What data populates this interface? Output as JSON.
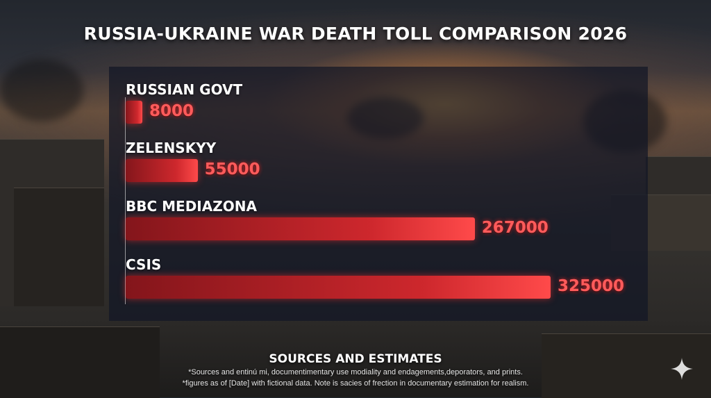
{
  "title": "RUSSIA-UKRAINE WAR DEATH TOLL COMPARISON 2026",
  "chart_data": {
    "type": "bar",
    "orientation": "horizontal",
    "categories": [
      "RUSSIAN GOVT",
      "ZELENSKYY",
      "BBC MEDIAZONA",
      "CSIS"
    ],
    "values": [
      8000,
      55000,
      267000,
      325000
    ],
    "value_labels": [
      "8000",
      "55000",
      "267000",
      "325000"
    ],
    "xlim": [
      0,
      325000
    ],
    "grid": false,
    "bar_color": "#e02a2e",
    "label_color": "#ff5b5b"
  },
  "footer": {
    "heading": "SOURCES AND ESTIMATES",
    "note_1": "*Sources and entinú mi, documentimentary use modiality and endagements,deporators, and prints.",
    "note_2": "*figures as of [Date] with fictional data. Note is sacies of frection in documentary estimation for realism."
  },
  "icons": {
    "corner": "sparkle-icon"
  }
}
